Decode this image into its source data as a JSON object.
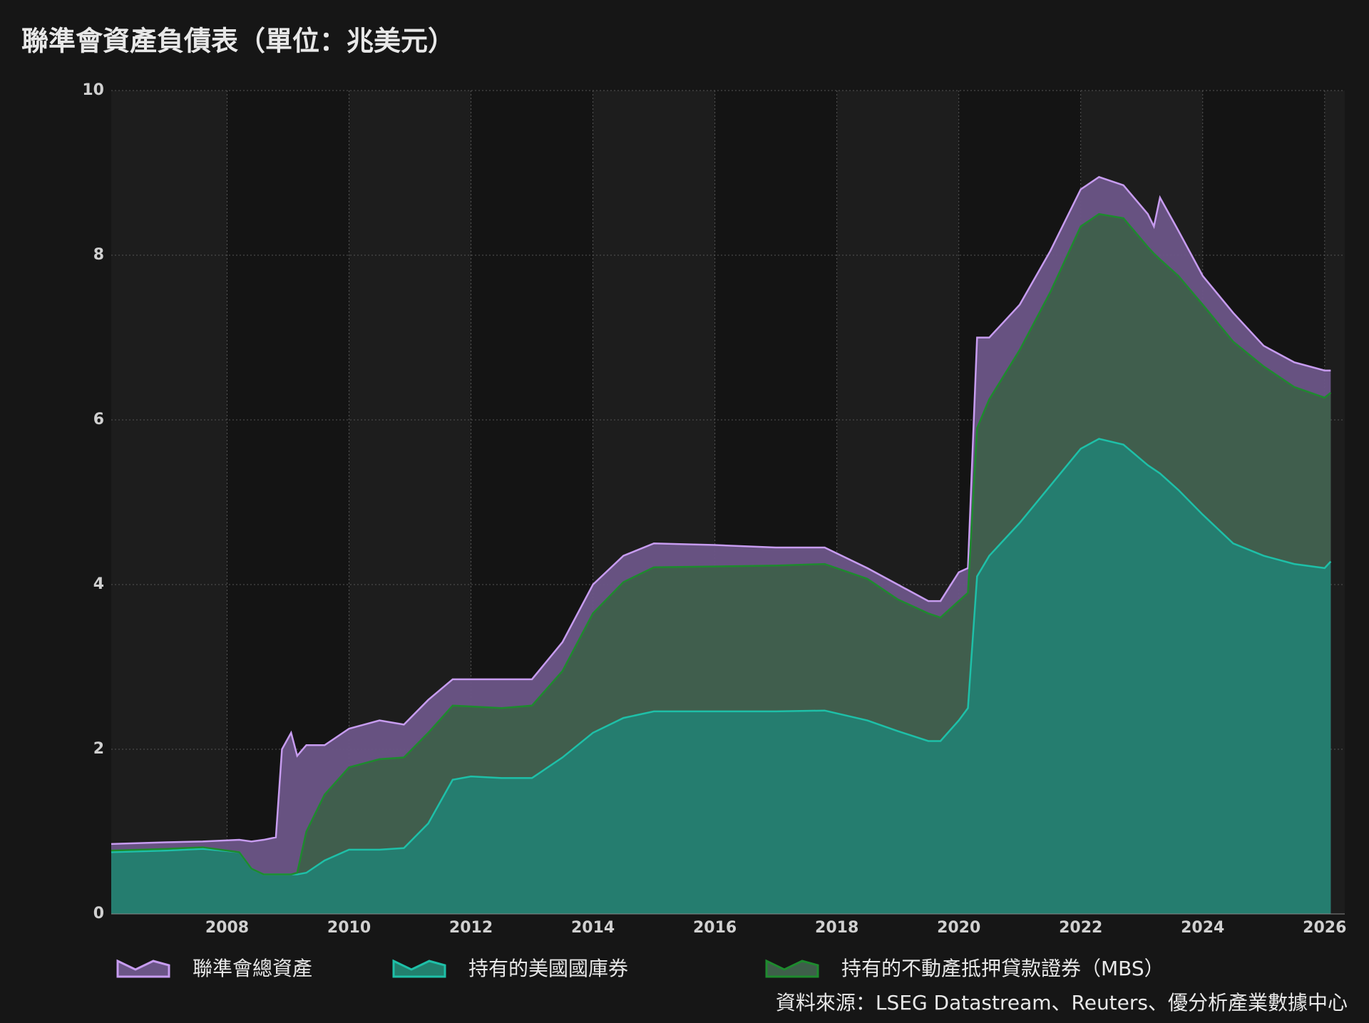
{
  "chart_data": {
    "type": "area",
    "title": "聯準會資產負債表（單位：兆美元）",
    "source": "資料來源：LSEG Datastream、Reuters、優分析產業數據中心",
    "x": [
      2006.1,
      2007.0,
      2007.6,
      2008.2,
      2008.4,
      2008.6,
      2008.8,
      2008.9,
      2009.05,
      2009.15,
      2009.3,
      2009.6,
      2010.0,
      2010.5,
      2010.9,
      2011.3,
      2011.7,
      2012.0,
      2012.5,
      2013.0,
      2013.5,
      2014.0,
      2014.5,
      2015.0,
      2016.0,
      2017.0,
      2017.8,
      2018.5,
      2019.0,
      2019.5,
      2019.7,
      2020.0,
      2020.15,
      2020.3,
      2020.5,
      2021.0,
      2021.5,
      2022.0,
      2022.3,
      2022.7,
      2023.1,
      2023.2,
      2023.3,
      2023.6,
      2024.0,
      2024.5,
      2025.0,
      2025.5,
      2026.0,
      2026.1
    ],
    "series": [
      {
        "name": "聯準會總資產",
        "color": "#c79cf0",
        "fill": "#6b5587",
        "stack": false,
        "values": [
          0.85,
          0.87,
          0.88,
          0.9,
          0.88,
          0.9,
          0.93,
          2.0,
          2.2,
          1.92,
          2.05,
          2.05,
          2.25,
          2.35,
          2.3,
          2.6,
          2.85,
          2.85,
          2.85,
          2.85,
          3.3,
          4.0,
          4.35,
          4.5,
          4.48,
          4.45,
          4.45,
          4.2,
          4.0,
          3.8,
          3.8,
          4.15,
          4.2,
          7.0,
          7.0,
          7.4,
          8.05,
          8.8,
          8.95,
          8.85,
          8.5,
          8.35,
          8.7,
          8.3,
          7.75,
          7.3,
          6.9,
          6.7,
          6.6,
          6.6
        ]
      },
      {
        "name": "持有的美國國庫券",
        "color": "#1ec0a8",
        "fill": "#22806e",
        "stack": true,
        "values": [
          0.75,
          0.77,
          0.79,
          0.75,
          0.55,
          0.48,
          0.48,
          0.48,
          0.48,
          0.48,
          0.5,
          0.65,
          0.78,
          0.78,
          0.8,
          1.1,
          1.63,
          1.67,
          1.65,
          1.65,
          1.9,
          2.2,
          2.38,
          2.46,
          2.46,
          2.46,
          2.47,
          2.35,
          2.22,
          2.1,
          2.1,
          2.35,
          2.5,
          4.1,
          4.35,
          4.75,
          5.2,
          5.65,
          5.77,
          5.7,
          5.45,
          5.4,
          5.35,
          5.15,
          4.85,
          4.5,
          4.35,
          4.25,
          4.2,
          4.28
        ]
      },
      {
        "name": "持有的不動產抵押貸款證券（MBS）",
        "color": "#1e8a2e",
        "fill": "#3e5f4a",
        "stack": true,
        "values": [
          0.02,
          0.02,
          0.02,
          0.0,
          0.0,
          0.0,
          0.0,
          0.0,
          0.0,
          0.02,
          0.5,
          0.8,
          1.0,
          1.1,
          1.1,
          1.1,
          0.9,
          0.85,
          0.85,
          0.88,
          1.05,
          1.45,
          1.65,
          1.75,
          1.76,
          1.77,
          1.78,
          1.72,
          1.6,
          1.55,
          1.5,
          1.45,
          1.4,
          1.8,
          1.9,
          2.1,
          2.35,
          2.7,
          2.73,
          2.75,
          2.65,
          2.62,
          2.6,
          2.6,
          2.55,
          2.45,
          2.3,
          2.15,
          2.07,
          2.05
        ]
      }
    ],
    "xlim": [
      2006.1,
      2026.33
    ],
    "xticks": [
      2008,
      2010,
      2012,
      2014,
      2016,
      2018,
      2020,
      2022,
      2024,
      2026
    ],
    "ylim": [
      0,
      10
    ],
    "yticks": [
      0,
      2,
      4,
      6,
      8,
      10
    ],
    "grid": true
  }
}
